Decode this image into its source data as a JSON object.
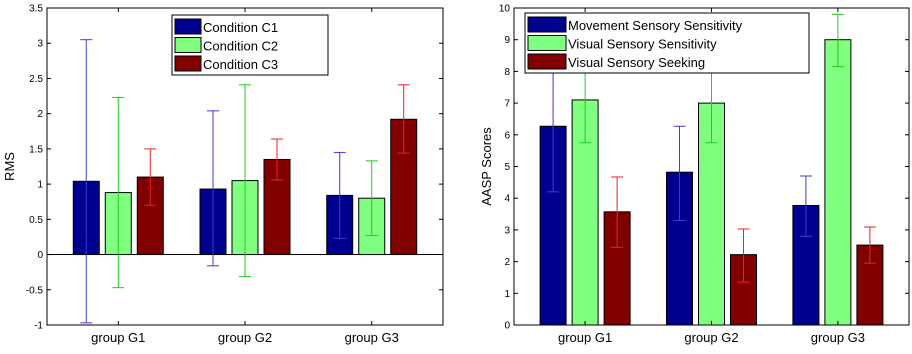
{
  "chart_data": [
    {
      "type": "bar",
      "title": "",
      "xlabel": "",
      "ylabel": "RMS",
      "ylim": [
        -1,
        3.5
      ],
      "yticks": [
        -1,
        -0.5,
        0,
        0.5,
        1,
        1.5,
        2,
        2.5,
        3,
        3.5
      ],
      "grid": false,
      "legend_position": "top-center",
      "categories": [
        "group G1",
        "group G2",
        "group G3"
      ],
      "series": [
        {
          "name": "Condition C1",
          "color": "#00008f",
          "error_color": "#3b3bd6",
          "values": [
            1.04,
            0.93,
            0.84
          ],
          "err_low": [
            -0.97,
            -0.16,
            0.23
          ],
          "err_high": [
            3.05,
            2.04,
            1.45
          ]
        },
        {
          "name": "Condition C2",
          "color": "#80ff80",
          "error_color": "#22cc22",
          "values": [
            0.88,
            1.05,
            0.8
          ],
          "err_low": [
            -0.47,
            -0.31,
            0.27
          ],
          "err_high": [
            2.23,
            2.41,
            1.33
          ]
        },
        {
          "name": "Condition C3",
          "color": "#800000",
          "error_color": "#ee2222",
          "values": [
            1.1,
            1.35,
            1.92
          ],
          "err_low": [
            0.7,
            1.06,
            1.44
          ],
          "err_high": [
            1.5,
            1.64,
            2.41
          ]
        }
      ]
    },
    {
      "type": "bar",
      "title": "",
      "xlabel": "",
      "ylabel": "AASP Scores",
      "ylim": [
        0,
        10
      ],
      "yticks": [
        0,
        1,
        2,
        3,
        4,
        5,
        6,
        7,
        8,
        9,
        10
      ],
      "grid": false,
      "legend_position": "top-left",
      "categories": [
        "group G1",
        "group G2",
        "group G3"
      ],
      "series": [
        {
          "name": "Movement Sensory Sensitivity",
          "color": "#00008f",
          "error_color": "#3b3bd6",
          "values": [
            6.27,
            4.82,
            3.77
          ],
          "err_low": [
            4.2,
            3.3,
            2.8
          ],
          "err_high": [
            8.3,
            6.27,
            4.7
          ]
        },
        {
          "name": "Visual Sensory Sensitivity",
          "color": "#80ff80",
          "error_color": "#22cc22",
          "values": [
            7.1,
            7.0,
            9.0
          ],
          "err_low": [
            5.75,
            5.75,
            8.15
          ],
          "err_high": [
            8.45,
            8.25,
            9.8
          ]
        },
        {
          "name": "Visual Sensory Seeking",
          "color": "#800000",
          "error_color": "#ee2222",
          "values": [
            3.57,
            2.22,
            2.52
          ],
          "err_low": [
            2.45,
            1.35,
            1.95
          ],
          "err_high": [
            4.67,
            3.03,
            3.09
          ]
        }
      ]
    }
  ]
}
